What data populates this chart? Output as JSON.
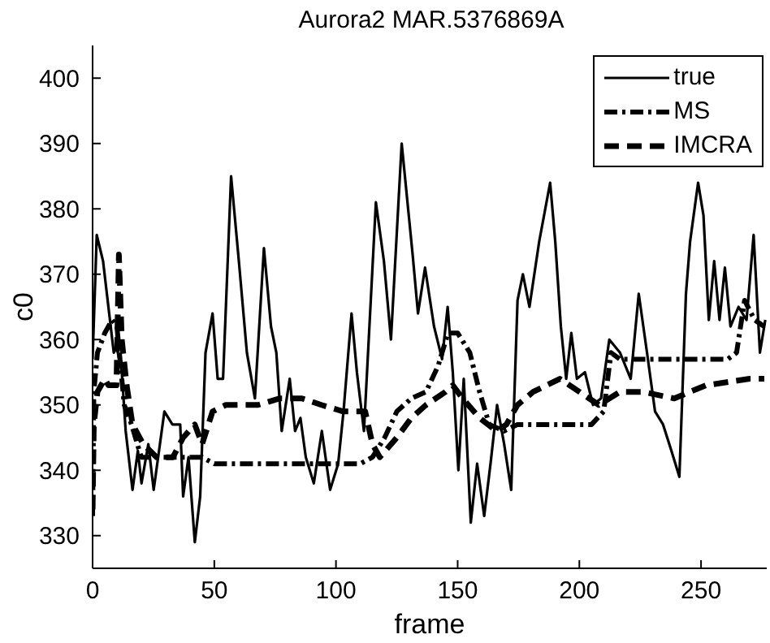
{
  "chart_data": {
    "type": "line",
    "title": "Aurora2 MAR.5376869A",
    "xlabel": "frame",
    "ylabel": "c0",
    "xlim": [
      0,
      277
    ],
    "xticks": [
      0,
      50,
      100,
      150,
      200,
      250
    ],
    "ylim": [
      325,
      405
    ],
    "yticks": [
      330,
      340,
      350,
      360,
      370,
      380,
      390,
      400
    ],
    "legend": "top right",
    "series": [
      {
        "name": "true",
        "color": "#000000",
        "line_style": "solid",
        "x": [
          0,
          1.7,
          4.3,
          6.5,
          8.7,
          9.8,
          12,
          13.6,
          16.4,
          18.6,
          20.1,
          22.9,
          25.1,
          29.5,
          32.8,
          36,
          37.2,
          39.4,
          42,
          44.2,
          46.4,
          49.3,
          51.4,
          53.6,
          56.9,
          60.1,
          63.4,
          66.7,
          70.4,
          73.3,
          75.5,
          77.7,
          81,
          83.2,
          85.4,
          87.6,
          90.9,
          94.2,
          97.6,
          100.9,
          103.1,
          106.4,
          108.6,
          111.5,
          116.4,
          119.7,
          122.6,
          127,
          131.5,
          133.7,
          136.6,
          140.3,
          143.6,
          145.9,
          148,
          150.3,
          152.5,
          155.4,
          158,
          160.9,
          163.5,
          166.2,
          169.1,
          172,
          174.6,
          176.8,
          179.5,
          183.5,
          188,
          190.1,
          192.4,
          194.6,
          196.7,
          199,
          202.3,
          205.6,
          208.9,
          212.3,
          216.7,
          221.1,
          224.4,
          227.8,
          231.1,
          234.4,
          237.8,
          241.1,
          243.8,
          245.5,
          248.8,
          251,
          253.2,
          255.4,
          257.6,
          259.8,
          262.1,
          265.4,
          268.7,
          271.6,
          274.2,
          276.4
        ],
        "values": [
          357,
          376,
          372,
          365,
          358,
          359,
          355,
          346,
          337,
          343,
          338,
          344,
          337,
          349,
          347,
          347,
          336,
          342,
          329,
          336,
          358,
          364,
          354,
          354,
          385,
          372,
          358,
          351,
          374,
          362,
          358,
          346,
          354,
          346,
          348,
          342,
          338,
          346,
          337,
          341,
          349,
          364,
          355,
          346,
          381,
          372,
          360,
          390,
          373,
          364,
          371,
          362,
          357,
          365,
          355,
          340,
          354,
          332,
          341,
          333,
          341,
          350,
          344,
          337,
          366,
          370,
          365,
          375,
          384,
          375,
          362,
          354,
          361,
          354,
          355,
          350,
          351,
          360,
          358,
          354,
          367,
          358,
          349,
          347,
          343,
          339,
          367,
          375,
          384,
          379,
          363,
          372,
          363,
          371,
          362,
          365,
          363,
          376,
          358,
          363
        ]
      },
      {
        "name": "MS",
        "color": "#000000",
        "line_style": "dashdot",
        "x": [
          0,
          0.5,
          2,
          5,
          8,
          10,
          13,
          16,
          20,
          25,
          30,
          38,
          45,
          50,
          60,
          80,
          100,
          110,
          115,
          120,
          125,
          131,
          137,
          142,
          146,
          150,
          155,
          159,
          163,
          169,
          174.6,
          181,
          195,
          205,
          210,
          213,
          216.7,
          230,
          248,
          261,
          264.6,
          267.9,
          272,
          276
        ],
        "values": [
          333,
          352,
          358,
          361,
          363,
          362,
          350,
          347,
          342,
          342,
          342,
          342,
          342,
          341,
          341,
          341,
          341,
          341,
          342,
          345,
          349,
          351,
          352,
          356,
          361,
          361,
          358,
          352,
          347,
          346,
          347,
          347,
          347,
          347,
          349,
          358,
          357,
          357,
          357,
          357,
          358,
          366,
          363,
          362
        ]
      },
      {
        "name": "IMCRA",
        "color": "#000000",
        "line_style": "dashed",
        "x": [
          0,
          0.5,
          2,
          5,
          6.5,
          9.8,
          10.8,
          12,
          14,
          16.4,
          20.8,
          26.3,
          33,
          37.2,
          42,
          45,
          49.3,
          54.8,
          61.5,
          68,
          77,
          86,
          94,
          103,
          112,
          115,
          118,
          125,
          131,
          137,
          145,
          148,
          152,
          159,
          166,
          170,
          174.6,
          181,
          192,
          208,
          216.7,
          226,
          239,
          252,
          270,
          276
        ],
        "values": [
          334,
          347,
          352,
          354,
          353,
          353,
          373,
          360,
          353,
          347,
          344,
          342,
          342,
          345,
          347,
          344,
          349,
          350,
          350,
          350,
          351,
          351,
          350,
          349,
          349,
          344,
          342,
          345,
          348,
          350,
          352,
          353,
          351,
          348,
          346,
          347,
          350,
          352,
          354,
          350,
          352,
          352,
          351,
          353,
          354,
          354
        ]
      }
    ]
  }
}
